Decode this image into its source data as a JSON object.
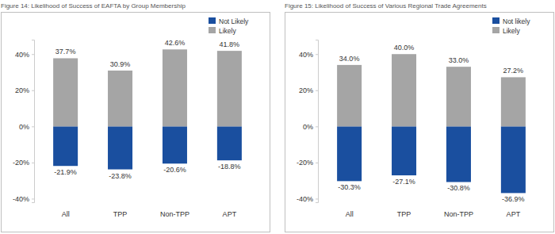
{
  "chart_data": [
    {
      "type": "bar",
      "title": "Figure 14: Likelihood of Success of EAFTA by Group Membership",
      "categories": [
        "All",
        "TPP",
        "Non-TPP",
        "APT"
      ],
      "series": [
        {
          "name": "Not Likely",
          "color": "#1a4f9f",
          "values": [
            -21.9,
            -23.8,
            -20.6,
            -18.8
          ],
          "value_labels": [
            "-21.9%",
            "-23.8%",
            "-20.6%",
            "-18.8%"
          ]
        },
        {
          "name": "Likely",
          "color": "#a5a5a5",
          "values": [
            37.7,
            30.9,
            42.6,
            41.8
          ],
          "value_labels": [
            "37.7%",
            "30.9%",
            "42.6%",
            "41.8%"
          ]
        }
      ],
      "ylim": [
        -42,
        48
      ],
      "yticks": [
        {
          "value": -40,
          "label": "-40%"
        },
        {
          "value": -20,
          "label": "-20%"
        },
        {
          "value": 0,
          "label": "0%"
        },
        {
          "value": 20,
          "label": "20%"
        },
        {
          "value": 40,
          "label": "40%"
        }
      ],
      "stacked": true,
      "data_labels": true,
      "legend": "top-right",
      "grid": false
    },
    {
      "type": "bar",
      "title": "Figure 15: Likelihood of Success of Various Regional Trade Agreements",
      "categories": [
        "All",
        "TPP",
        "Non-TPP",
        "APT"
      ],
      "series": [
        {
          "name": "Not likely",
          "color": "#1a4f9f",
          "values": [
            -30.3,
            -27.1,
            -30.8,
            -36.9
          ],
          "value_labels": [
            "-30.3%",
            "-27.1%",
            "-30.8%",
            "-36.9%"
          ]
        },
        {
          "name": "Likely",
          "color": "#a5a5a5",
          "values": [
            34.0,
            40.0,
            33.0,
            27.2
          ],
          "value_labels": [
            "34.0%",
            "40.0%",
            "33.0%",
            "27.2%"
          ]
        }
      ],
      "ylim": [
        -42,
        48
      ],
      "yticks": [
        {
          "value": -40,
          "label": "-40%"
        },
        {
          "value": -20,
          "label": "-20%"
        },
        {
          "value": 0,
          "label": "0%"
        },
        {
          "value": 20,
          "label": "20%"
        },
        {
          "value": 40,
          "label": "40%"
        }
      ],
      "stacked": true,
      "data_labels": true,
      "legend": "top-right",
      "grid": false
    }
  ]
}
